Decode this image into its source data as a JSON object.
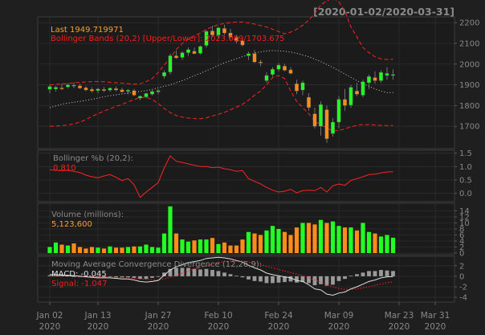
{
  "header": {
    "date_range": "[2020-01-02/2020-03-31]",
    "last_label": "Last 1949.719971",
    "bbands_label": "Bollinger Bands (20,2) [Upper/Lower]: 2023.089/1703.675"
  },
  "colors": {
    "background": "#1f1f1f",
    "panel_bg": "#1a1a1a",
    "grid": "#2e2e2e",
    "axis_text": "#888888",
    "up": "#22ff22",
    "down": "#ff8c1a",
    "band": "#ff2222",
    "ma": "#cccccc",
    "label_orange": "#ff9d2b",
    "label_red": "#ff1a1a",
    "macd_line": "#dddddd",
    "signal_line": "#ff2222",
    "hist": "#9a9a9a"
  },
  "chart_data": [
    {
      "type": "candlestick",
      "panel": "price",
      "ylim": [
        1600,
        2220
      ],
      "y_ticks": [
        1700,
        1800,
        1900,
        2000,
        2100,
        2200
      ],
      "ohlc": [
        [
          1878,
          1900,
          1860,
          1892
        ],
        [
          1880,
          1895,
          1868,
          1888
        ],
        [
          1885,
          1905,
          1875,
          1880
        ],
        [
          1890,
          1908,
          1882,
          1900
        ],
        [
          1898,
          1912,
          1885,
          1896
        ],
        [
          1895,
          1905,
          1880,
          1884
        ],
        [
          1886,
          1894,
          1870,
          1875
        ],
        [
          1878,
          1888,
          1862,
          1870
        ],
        [
          1872,
          1885,
          1860,
          1880
        ],
        [
          1878,
          1890,
          1865,
          1872
        ],
        [
          1874,
          1888,
          1866,
          1884
        ],
        [
          1882,
          1892,
          1870,
          1875
        ],
        [
          1876,
          1886,
          1862,
          1866
        ],
        [
          1868,
          1880,
          1855,
          1874
        ],
        [
          1872,
          1880,
          1846,
          1850
        ],
        [
          1836,
          1850,
          1825,
          1845
        ],
        [
          1842,
          1862,
          1835,
          1858
        ],
        [
          1855,
          1875,
          1848,
          1868
        ],
        [
          1866,
          1880,
          1855,
          1872
        ],
        [
          1942,
          1970,
          1930,
          1960
        ],
        [
          1962,
          2050,
          1950,
          2040
        ],
        [
          2040,
          2065,
          2025,
          2030
        ],
        [
          2032,
          2060,
          2020,
          2055
        ],
        [
          2055,
          2080,
          2040,
          2070
        ],
        [
          2062,
          2080,
          2048,
          2050
        ],
        [
          2052,
          2090,
          2045,
          2085
        ],
        [
          2090,
          2165,
          2080,
          2158
        ],
        [
          2160,
          2185,
          2130,
          2140
        ],
        [
          2140,
          2180,
          2125,
          2175
        ],
        [
          2172,
          2190,
          2140,
          2150
        ],
        [
          2150,
          2170,
          2120,
          2130
        ],
        [
          2130,
          2140,
          2100,
          2110
        ],
        [
          2112,
          2125,
          2085,
          2092
        ],
        [
          2040,
          2060,
          2020,
          2050
        ],
        [
          2050,
          2068,
          2005,
          2010
        ],
        [
          2010,
          2020,
          1990,
          2005
        ],
        [
          1920,
          1960,
          1910,
          1945
        ],
        [
          1950,
          1985,
          1940,
          1975
        ],
        [
          1975,
          2005,
          1965,
          1995
        ],
        [
          1990,
          2002,
          1965,
          1970
        ],
        [
          1972,
          1985,
          1950,
          1955
        ],
        [
          1905,
          1925,
          1855,
          1870
        ],
        [
          1875,
          1920,
          1850,
          1910
        ],
        [
          1840,
          1860,
          1775,
          1790
        ],
        [
          1760,
          1790,
          1690,
          1700
        ],
        [
          1700,
          1820,
          1655,
          1805
        ],
        [
          1780,
          1800,
          1620,
          1640
        ],
        [
          1665,
          1740,
          1650,
          1720
        ],
        [
          1720,
          1845,
          1690,
          1830
        ],
        [
          1830,
          1880,
          1775,
          1800
        ],
        [
          1802,
          1900,
          1790,
          1888
        ],
        [
          1870,
          1910,
          1845,
          1855
        ],
        [
          1850,
          1925,
          1840,
          1915
        ],
        [
          1910,
          1950,
          1880,
          1940
        ],
        [
          1935,
          1965,
          1905,
          1920
        ],
        [
          1920,
          1970,
          1910,
          1960
        ],
        [
          1945,
          1985,
          1925,
          1955
        ],
        [
          1945,
          1975,
          1925,
          1950
        ]
      ],
      "bb_upper": [
        1900,
        1902,
        1904,
        1906,
        1910,
        1912,
        1914,
        1915,
        1916,
        1915,
        1912,
        1910,
        1908,
        1906,
        1903,
        1905,
        1915,
        1930,
        1960,
        1995,
        2030,
        2070,
        2100,
        2120,
        2138,
        2150,
        2168,
        2180,
        2190,
        2196,
        2200,
        2203,
        2203,
        2198,
        2193,
        2186,
        2179,
        2168,
        2157,
        2146,
        2154,
        2168,
        2188,
        2212,
        2245,
        2285,
        2305,
        2320,
        2300,
        2255,
        2180,
        2130,
        2080,
        2055,
        2035,
        2025,
        2022,
        2023
      ],
      "bb_lower": [
        1700,
        1701,
        1703,
        1706,
        1712,
        1720,
        1732,
        1748,
        1760,
        1774,
        1784,
        1796,
        1805,
        1818,
        1828,
        1840,
        1840,
        1829,
        1810,
        1786,
        1766,
        1752,
        1744,
        1740,
        1737,
        1736,
        1741,
        1750,
        1758,
        1767,
        1780,
        1792,
        1806,
        1826,
        1850,
        1870,
        1900,
        1935,
        1945,
        1930,
        1870,
        1820,
        1790,
        1760,
        1725,
        1707,
        1692,
        1678,
        1680,
        1688,
        1697,
        1705,
        1708,
        1708,
        1706,
        1704,
        1704,
        1704
      ],
      "bb_mid": [
        1790,
        1798,
        1806,
        1812,
        1816,
        1820,
        1825,
        1830,
        1836,
        1842,
        1848,
        1852,
        1856,
        1860,
        1864,
        1868,
        1872,
        1878,
        1886,
        1893,
        1900,
        1910,
        1920,
        1932,
        1944,
        1955,
        1968,
        1980,
        1994,
        2006,
        2016,
        2026,
        2036,
        2045,
        2053,
        2059,
        2063,
        2065,
        2064,
        2062,
        2058,
        2052,
        2044,
        2035,
        2024,
        2012,
        1998,
        1984,
        1968,
        1952,
        1936,
        1920,
        1905,
        1893,
        1880,
        1870,
        1862,
        1863
      ]
    },
    {
      "type": "line",
      "panel": "bollinger_pctb",
      "title": "Bollinger %b (20,2):",
      "value_label": "0.810",
      "ylim": [
        -0.25,
        1.55
      ],
      "y_ticks": [
        0,
        0.5,
        1.0,
        1.5
      ],
      "y_tick_labels": [
        "0.0",
        "0.5",
        "1.0",
        "1.5"
      ],
      "values": [
        0.88,
        0.86,
        0.85,
        0.86,
        0.82,
        0.78,
        0.68,
        0.62,
        0.58,
        0.65,
        0.7,
        0.6,
        0.48,
        0.55,
        0.32,
        -0.15,
        0.05,
        0.22,
        0.4,
        0.95,
        1.4,
        1.2,
        1.15,
        1.1,
        1.05,
        1.0,
        1.0,
        0.96,
        0.98,
        0.92,
        0.88,
        0.82,
        0.85,
        0.55,
        0.45,
        0.35,
        0.22,
        0.12,
        0.05,
        0.08,
        0.15,
        0.02,
        0.1,
        0.12,
        0.1,
        0.22,
        0.05,
        0.28,
        0.35,
        0.3,
        0.48,
        0.55,
        0.62,
        0.7,
        0.72,
        0.76,
        0.8,
        0.81
      ]
    },
    {
      "type": "bar",
      "panel": "volume",
      "title": "Volume (millions):",
      "value_label": "5,123,600",
      "ylim": [
        0,
        16
      ],
      "y_ticks": [
        0,
        2,
        4,
        6,
        8,
        10,
        12,
        14
      ],
      "values": [
        2.0,
        3.5,
        2.8,
        2.5,
        3.2,
        2.0,
        1.5,
        2.0,
        1.8,
        1.5,
        2.2,
        1.8,
        1.8,
        2.0,
        2.2,
        2.2,
        2.8,
        2.0,
        1.8,
        6.5,
        15.5,
        6.5,
        4.5,
        3.8,
        4.2,
        4.5,
        4.5,
        5.0,
        3.0,
        3.5,
        2.5,
        2.5,
        4.5,
        7.0,
        6.5,
        6.0,
        7.5,
        9.0,
        8.0,
        7.0,
        6.0,
        8.5,
        10.0,
        10.0,
        9.5,
        11.0,
        10.0,
        10.5,
        9.0,
        8.5,
        8.5,
        7.5,
        10.0,
        7.0,
        6.5,
        5.5,
        6.0,
        5.1
      ]
    },
    {
      "type": "line",
      "panel": "macd",
      "title": "Moving Average Convergence Divergence (12,26,9):",
      "macd_label": "MACD: -0.045",
      "signal_label": "Signal: -1.047",
      "ylim": [
        -4.6,
        3.5
      ],
      "y_ticks": [
        -4,
        -2,
        0,
        2
      ],
      "macd": [
        0.3,
        0.3,
        0.2,
        0.2,
        0.1,
        0.0,
        -0.1,
        -0.2,
        -0.3,
        -0.3,
        -0.3,
        -0.4,
        -0.5,
        -0.5,
        -0.7,
        -1.0,
        -1.1,
        -1.0,
        -0.8,
        0.2,
        1.2,
        1.8,
        2.2,
        2.6,
        2.8,
        3.0,
        3.4,
        3.5,
        3.6,
        3.5,
        3.3,
        3.0,
        2.7,
        2.1,
        1.6,
        1.2,
        0.6,
        0.3,
        0.1,
        -0.1,
        -0.3,
        -0.8,
        -1.0,
        -1.6,
        -2.4,
        -2.6,
        -3.4,
        -3.6,
        -3.2,
        -3.0,
        -2.4,
        -2.0,
        -1.5,
        -1.0,
        -0.7,
        -0.3,
        -0.1,
        -0.045
      ],
      "signal": [
        0.1,
        0.1,
        0.1,
        0.1,
        0.1,
        0.1,
        0.0,
        0.0,
        -0.1,
        -0.1,
        -0.2,
        -0.2,
        -0.3,
        -0.3,
        -0.4,
        -0.5,
        -0.6,
        -0.7,
        -0.7,
        -0.5,
        -0.2,
        0.2,
        0.6,
        1.0,
        1.4,
        1.7,
        2.0,
        2.3,
        2.6,
        2.8,
        2.9,
        2.9,
        2.9,
        2.7,
        2.5,
        2.2,
        1.9,
        1.6,
        1.3,
        1.0,
        0.7,
        0.4,
        0.1,
        -0.3,
        -0.7,
        -1.1,
        -1.6,
        -2.0,
        -2.3,
        -2.5,
        -2.5,
        -2.4,
        -2.2,
        -2.0,
        -1.7,
        -1.5,
        -1.2,
        -1.047
      ]
    }
  ],
  "x_axis": {
    "labels": [
      {
        "index": 0,
        "date": "Jan 02",
        "year": "2020"
      },
      {
        "index": 8,
        "date": "Jan 13",
        "year": "2020"
      },
      {
        "index": 18,
        "date": "Jan 27",
        "year": "2020"
      },
      {
        "index": 28,
        "date": "Feb 10",
        "year": "2020"
      },
      {
        "index": 38,
        "date": "Feb 24",
        "year": "2020"
      },
      {
        "index": 48,
        "date": "Mar 09",
        "year": "2020"
      },
      {
        "index": 58,
        "date": "Mar 23",
        "year": "2020"
      },
      {
        "index": 64,
        "date": "Mar 31",
        "year": "2020"
      }
    ],
    "total_periods": 65
  }
}
